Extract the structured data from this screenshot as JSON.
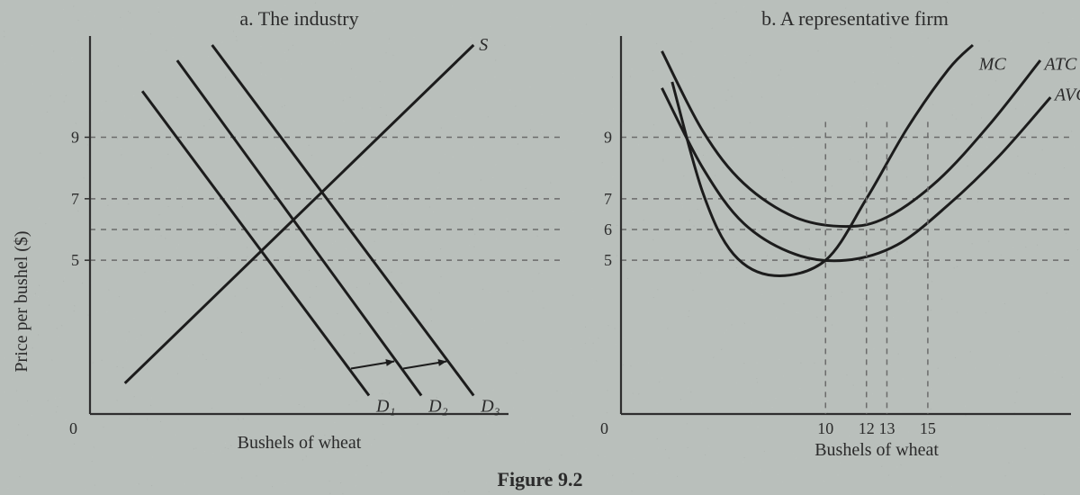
{
  "figure_label": "Figure 9.2",
  "background_color": "#b9bfbb",
  "panel_background": "#cfd2cc",
  "axis_color": "#2e2e2e",
  "axis_stroke_width": 2.2,
  "curve_stroke_color": "#1c1c1c",
  "curve_stroke_width": 3,
  "dash_color": "#6b6b6b",
  "dash_pattern": "6,6",
  "text_color": "#2b2b2b",
  "title_fontsize": 22,
  "label_fontsize": 20,
  "tick_fontsize": 18,
  "figure_fontsize": 22,
  "y_axis": {
    "label": "Price per bushel ($)",
    "label_fontsize": 20,
    "ticks": [
      {
        "v": 5,
        "label": "5"
      },
      {
        "v": 7,
        "label": "7"
      },
      {
        "v": 9,
        "label": "9"
      }
    ],
    "origin_label": "0",
    "range": [
      0,
      12
    ]
  },
  "panel_a": {
    "title": "a. The industry",
    "x_label": "Bushels of wheat",
    "supply": {
      "label": "S",
      "points": [
        [
          1.0,
          1.0
        ],
        [
          11.0,
          12.0
        ]
      ]
    },
    "demand": [
      {
        "label": "D₁",
        "points": [
          [
            1.5,
            10.5
          ],
          [
            8.0,
            0.6
          ]
        ],
        "arrow_from_prev": false
      },
      {
        "label": "D₂",
        "points": [
          [
            2.5,
            11.5
          ],
          [
            9.5,
            0.6
          ]
        ],
        "arrow_from_prev": true
      },
      {
        "label": "D₃",
        "points": [
          [
            3.5,
            12.0
          ],
          [
            11.0,
            0.6
          ]
        ],
        "arrow_from_prev": true
      }
    ]
  },
  "panel_b": {
    "title": "b. A representative firm",
    "x_label": "Bushels of wheat",
    "x_ticks": [
      {
        "v": 10,
        "label": "10"
      },
      {
        "v": 12,
        "label": "12"
      },
      {
        "v": 13,
        "label": "13"
      },
      {
        "v": 15,
        "label": "15"
      }
    ],
    "x_range": [
      0,
      22
    ],
    "curves": {
      "MC": {
        "label": "MC",
        "label_pos": [
          17.5,
          11.2
        ],
        "points": [
          [
            2.5,
            10.8
          ],
          [
            4.0,
            7.2
          ],
          [
            5.5,
            5.2
          ],
          [
            7.5,
            4.5
          ],
          [
            10.0,
            5.0
          ],
          [
            12.0,
            7.0
          ],
          [
            14.0,
            9.3
          ],
          [
            16.0,
            11.2
          ],
          [
            17.2,
            12.0
          ]
        ]
      },
      "ATC": {
        "label": "ATC",
        "label_pos": [
          20.7,
          11.2
        ],
        "points": [
          [
            2.0,
            11.8
          ],
          [
            4.0,
            9.2
          ],
          [
            6.0,
            7.5
          ],
          [
            8.5,
            6.4
          ],
          [
            11.0,
            6.1
          ],
          [
            13.0,
            6.4
          ],
          [
            15.5,
            7.6
          ],
          [
            18.0,
            9.4
          ],
          [
            20.5,
            11.5
          ]
        ]
      },
      "AVC": {
        "label": "AVC",
        "label_pos": [
          21.2,
          10.2
        ],
        "points": [
          [
            2.0,
            10.6
          ],
          [
            4.0,
            8.0
          ],
          [
            6.0,
            6.2
          ],
          [
            8.5,
            5.2
          ],
          [
            11.0,
            5.0
          ],
          [
            13.5,
            5.5
          ],
          [
            16.0,
            6.8
          ],
          [
            18.5,
            8.4
          ],
          [
            21.0,
            10.3
          ]
        ]
      }
    },
    "dash_verticals_from_y": 0,
    "dash_x_at": [
      10,
      12,
      13,
      15
    ]
  },
  "horizontal_dashes_at_y": [
    5,
    6,
    7,
    9
  ],
  "horizontal_dash_left_ticks": [
    5,
    7,
    9
  ],
  "horizontal_dash_right_ticks": [
    5,
    6,
    7,
    9
  ]
}
